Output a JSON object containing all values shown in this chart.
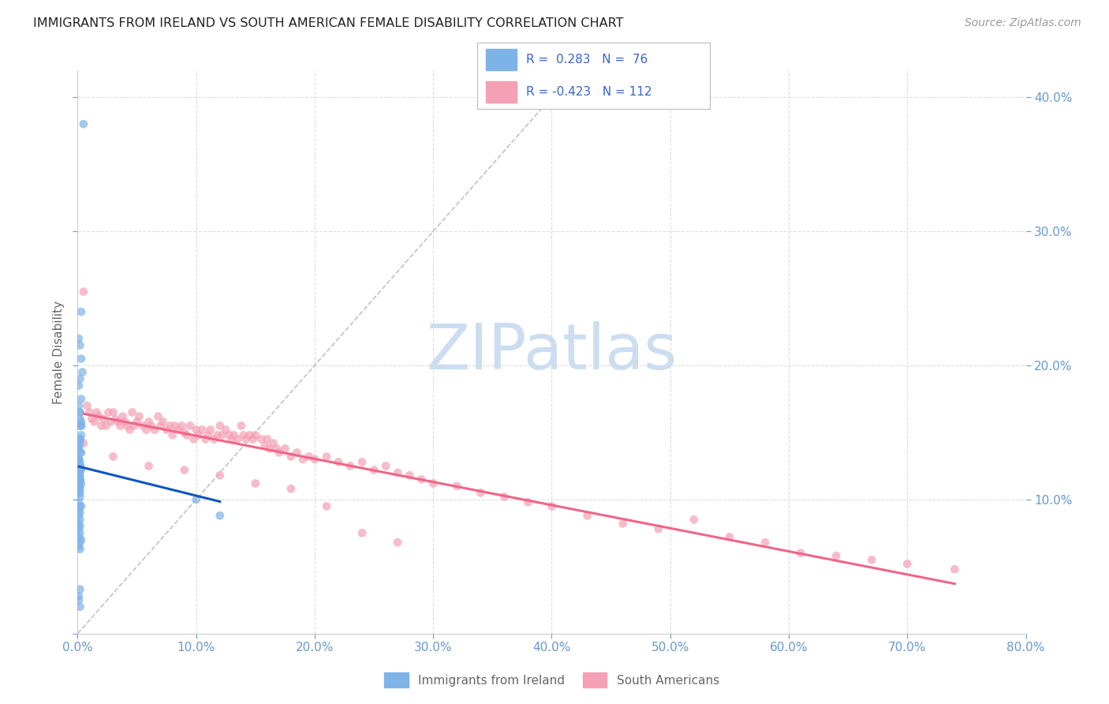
{
  "title": "IMMIGRANTS FROM IRELAND VS SOUTH AMERICAN FEMALE DISABILITY CORRELATION CHART",
  "source": "Source: ZipAtlas.com",
  "ylabel": "Female Disability",
  "xlim": [
    0.0,
    0.8
  ],
  "ylim": [
    0.0,
    0.42
  ],
  "xticks": [
    0.0,
    0.1,
    0.2,
    0.3,
    0.4,
    0.5,
    0.6,
    0.7,
    0.8
  ],
  "yticks": [
    0.0,
    0.1,
    0.2,
    0.3,
    0.4
  ],
  "right_yticks": [
    0.1,
    0.2,
    0.3,
    0.4
  ],
  "legend_R1": "0.283",
  "legend_N1": "76",
  "legend_R2": "-0.423",
  "legend_N2": "112",
  "watermark": "ZIPatlas",
  "watermark_color": "#ccddf0",
  "series1_color": "#7eb3e8",
  "series2_color": "#f5a0b5",
  "trendline1_color": "#1155bb",
  "trendline2_color": "#ee6688",
  "diag_line_color": "#bbbbbb",
  "background_color": "#ffffff",
  "grid_color": "#dddddd",
  "tick_color": "#6699cc",
  "label_color": "#666666",
  "title_color": "#222222",
  "source_color": "#999999",
  "ireland_x": [
    0.005,
    0.003,
    0.002,
    0.003,
    0.004,
    0.002,
    0.001,
    0.003,
    0.002,
    0.001,
    0.003,
    0.002,
    0.001,
    0.002,
    0.001,
    0.002,
    0.003,
    0.001,
    0.002,
    0.001,
    0.002,
    0.001,
    0.003,
    0.002,
    0.001,
    0.002,
    0.003,
    0.001,
    0.002,
    0.003,
    0.001,
    0.002,
    0.001,
    0.002,
    0.001,
    0.002,
    0.001,
    0.002,
    0.001,
    0.002,
    0.001,
    0.002,
    0.001,
    0.002,
    0.001,
    0.003,
    0.002,
    0.001,
    0.002,
    0.001,
    0.002,
    0.003,
    0.001,
    0.002,
    0.001,
    0.002,
    0.001,
    0.002,
    0.003,
    0.001,
    0.002,
    0.001,
    0.002,
    0.001,
    0.002,
    0.001,
    0.003,
    0.002,
    0.001,
    0.002,
    0.1,
    0.12,
    0.001,
    0.002,
    0.001,
    0.002
  ],
  "ireland_y": [
    0.38,
    0.24,
    0.215,
    0.205,
    0.195,
    0.19,
    0.185,
    0.175,
    0.165,
    0.22,
    0.155,
    0.145,
    0.14,
    0.135,
    0.13,
    0.125,
    0.122,
    0.118,
    0.115,
    0.112,
    0.165,
    0.17,
    0.155,
    0.145,
    0.138,
    0.142,
    0.148,
    0.155,
    0.16,
    0.158,
    0.13,
    0.128,
    0.125,
    0.122,
    0.118,
    0.115,
    0.112,
    0.11,
    0.108,
    0.105,
    0.13,
    0.125,
    0.122,
    0.118,
    0.115,
    0.135,
    0.125,
    0.12,
    0.115,
    0.11,
    0.108,
    0.112,
    0.105,
    0.102,
    0.098,
    0.095,
    0.092,
    0.09,
    0.095,
    0.088,
    0.085,
    0.082,
    0.08,
    0.078,
    0.075,
    0.072,
    0.07,
    0.068,
    0.065,
    0.063,
    0.1,
    0.088,
    0.028,
    0.033,
    0.025,
    0.02
  ],
  "sa_x": [
    0.005,
    0.008,
    0.01,
    0.012,
    0.014,
    0.016,
    0.018,
    0.02,
    0.022,
    0.024,
    0.026,
    0.028,
    0.03,
    0.032,
    0.034,
    0.036,
    0.038,
    0.04,
    0.042,
    0.044,
    0.046,
    0.048,
    0.05,
    0.052,
    0.055,
    0.058,
    0.06,
    0.062,
    0.065,
    0.068,
    0.07,
    0.072,
    0.075,
    0.078,
    0.08,
    0.082,
    0.085,
    0.088,
    0.09,
    0.092,
    0.095,
    0.098,
    0.1,
    0.102,
    0.105,
    0.108,
    0.11,
    0.112,
    0.115,
    0.118,
    0.12,
    0.122,
    0.125,
    0.128,
    0.13,
    0.132,
    0.135,
    0.138,
    0.14,
    0.142,
    0.145,
    0.148,
    0.15,
    0.155,
    0.158,
    0.16,
    0.162,
    0.165,
    0.168,
    0.17,
    0.175,
    0.18,
    0.185,
    0.19,
    0.195,
    0.2,
    0.21,
    0.22,
    0.23,
    0.24,
    0.25,
    0.26,
    0.27,
    0.28,
    0.29,
    0.3,
    0.32,
    0.34,
    0.36,
    0.38,
    0.4,
    0.43,
    0.46,
    0.49,
    0.52,
    0.55,
    0.58,
    0.61,
    0.64,
    0.67,
    0.7,
    0.74,
    0.005,
    0.03,
    0.06,
    0.09,
    0.12,
    0.15,
    0.18,
    0.21,
    0.24,
    0.27
  ],
  "sa_y": [
    0.255,
    0.17,
    0.165,
    0.16,
    0.158,
    0.165,
    0.162,
    0.155,
    0.16,
    0.155,
    0.165,
    0.158,
    0.165,
    0.16,
    0.158,
    0.155,
    0.162,
    0.158,
    0.155,
    0.152,
    0.165,
    0.155,
    0.158,
    0.162,
    0.155,
    0.152,
    0.158,
    0.155,
    0.152,
    0.162,
    0.155,
    0.158,
    0.152,
    0.155,
    0.148,
    0.155,
    0.152,
    0.155,
    0.15,
    0.148,
    0.155,
    0.145,
    0.152,
    0.148,
    0.152,
    0.145,
    0.148,
    0.152,
    0.145,
    0.148,
    0.155,
    0.148,
    0.152,
    0.148,
    0.145,
    0.148,
    0.145,
    0.155,
    0.148,
    0.145,
    0.148,
    0.145,
    0.148,
    0.145,
    0.14,
    0.145,
    0.138,
    0.142,
    0.138,
    0.135,
    0.138,
    0.132,
    0.135,
    0.13,
    0.132,
    0.13,
    0.132,
    0.128,
    0.125,
    0.128,
    0.122,
    0.125,
    0.12,
    0.118,
    0.115,
    0.112,
    0.11,
    0.105,
    0.102,
    0.098,
    0.095,
    0.088,
    0.082,
    0.078,
    0.085,
    0.072,
    0.068,
    0.06,
    0.058,
    0.055,
    0.052,
    0.048,
    0.142,
    0.132,
    0.125,
    0.122,
    0.118,
    0.112,
    0.108,
    0.095,
    0.075,
    0.068
  ]
}
